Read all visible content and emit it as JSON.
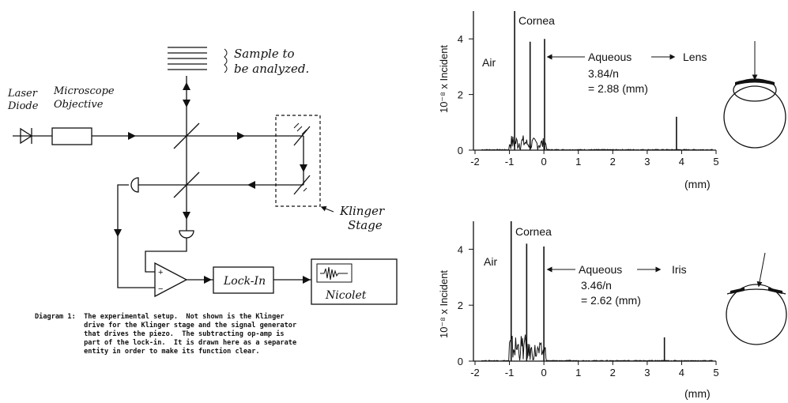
{
  "diagram": {
    "laser_label_1": "Laser",
    "laser_label_2": "Diode",
    "objective_label_1": "Microscope",
    "objective_label_2": "Objective",
    "sample_label_1": "Sample to",
    "sample_label_2": "be analyzed.",
    "stage_label_1": "Klinger",
    "stage_label_2": "Stage",
    "lockin_label": "Lock-In",
    "nicolet_label": "Nicolet",
    "plus_sign": "+",
    "minus_sign": "−",
    "caption_lines": [
      "Diagram 1:  The experimental setup.  Not shown is the Klinger",
      "            drive for the Klinger stage and the signal generator",
      "            that drives the piezo.  The subtracting op-amp is",
      "            part of the lock-in.  It is drawn here as a separate",
      "            entity in order to make its function clear."
    ]
  },
  "chart_data": [
    {
      "type": "line",
      "ylabel": "10⁻⁸ x Incident",
      "xlabel": "(mm)",
      "x_ticks": [
        "-2",
        "-1",
        "0",
        "1",
        "2",
        "3",
        "4",
        "5"
      ],
      "y_ticks": [
        "0",
        "2",
        "4"
      ],
      "xlim": [
        -2,
        5
      ],
      "ylim": [
        0,
        5
      ],
      "region_labels": {
        "air": "Air",
        "cornea": "Cornea",
        "aqueous": "Aqueous",
        "lens": "Lens"
      },
      "annotation_1": "3.84/n",
      "annotation_2": "= 2.88 (mm)",
      "peaks": [
        {
          "x": -0.85,
          "y": 5.0
        },
        {
          "x": -0.4,
          "y": 3.9
        },
        {
          "x": 0.02,
          "y": 4.0
        },
        {
          "x": 3.85,
          "y": 1.2
        }
      ]
    },
    {
      "type": "line",
      "ylabel": "10⁻⁸ x Incident",
      "xlabel": "(mm)",
      "x_ticks": [
        "-2",
        "-1",
        "0",
        "1",
        "2",
        "3",
        "4",
        "5"
      ],
      "y_ticks": [
        "0",
        "2",
        "4"
      ],
      "xlim": [
        -2,
        5
      ],
      "ylim": [
        0,
        5
      ],
      "region_labels": {
        "air": "Air",
        "cornea": "Cornea",
        "aqueous": "Aqueous",
        "iris": "Iris"
      },
      "annotation_1": "3.46/n",
      "annotation_2": "= 2.62 (mm)",
      "peaks": [
        {
          "x": -0.95,
          "y": 5.0
        },
        {
          "x": -0.5,
          "y": 4.2
        },
        {
          "x": 0.0,
          "y": 4.1
        },
        {
          "x": 3.5,
          "y": 0.85
        }
      ]
    }
  ]
}
